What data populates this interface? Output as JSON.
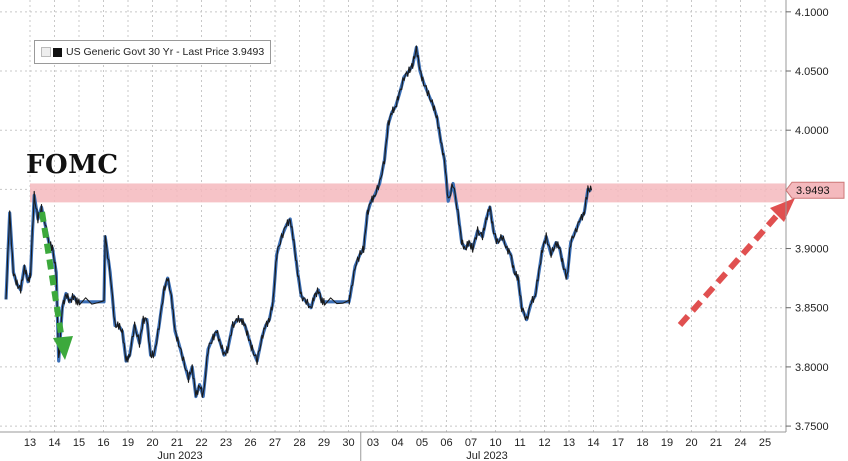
{
  "legend": {
    "text": "US Generic Govt 30 Yr - Last Price 3.9493",
    "series_color": "#1a1a1a"
  },
  "annotations": {
    "fomc_label": "FOMC",
    "band_color": "#f4b9bd",
    "down_arrow_color": "#3ca93c",
    "up_arrow_color": "#e05050"
  },
  "chart_data": {
    "type": "line",
    "title": "",
    "xlabel": "",
    "ylabel": "",
    "ylim": [
      3.745,
      4.11
    ],
    "y_ticks": [
      "4.1000",
      "4.0500",
      "4.0000",
      "3.9500",
      "3.9000",
      "3.8500",
      "3.8000",
      "3.7500"
    ],
    "y_tick_values": [
      4.1,
      4.05,
      4.0,
      3.95,
      3.9,
      3.85,
      3.8,
      3.75
    ],
    "x_tick_labels": [
      "13",
      "14",
      "15",
      "16",
      "19",
      "20",
      "21",
      "22",
      "23",
      "26",
      "27",
      "28",
      "29",
      "30",
      "03",
      "04",
      "05",
      "06",
      "07",
      "10",
      "11",
      "12",
      "13",
      "14",
      "17",
      "18",
      "19",
      "20",
      "21",
      "24",
      "25"
    ],
    "month_labels": [
      "Jun 2023",
      "Jul 2023"
    ],
    "last_price_label": "3.9493",
    "last_price": 3.9493,
    "fomc_band": [
      3.939,
      3.955
    ],
    "series": [
      {
        "name": "US Generic Govt 30 Yr - Last Price",
        "points": [
          [
            0.0,
            3.857
          ],
          [
            0.15,
            3.93
          ],
          [
            0.3,
            3.88
          ],
          [
            0.45,
            3.87
          ],
          [
            0.6,
            3.865
          ],
          [
            0.75,
            3.885
          ],
          [
            0.9,
            3.872
          ],
          [
            1.0,
            3.878
          ],
          [
            1.15,
            3.945
          ],
          [
            1.3,
            3.925
          ],
          [
            1.45,
            3.935
          ],
          [
            1.6,
            3.92
          ],
          [
            1.75,
            3.905
          ],
          [
            1.9,
            3.9
          ],
          [
            2.05,
            3.88
          ],
          [
            2.15,
            3.805
          ],
          [
            2.3,
            3.85
          ],
          [
            2.45,
            3.862
          ],
          [
            2.6,
            3.855
          ],
          [
            2.75,
            3.86
          ],
          [
            2.9,
            3.855
          ],
          [
            3.0,
            3.855
          ],
          [
            4.0,
            3.855
          ],
          [
            4.05,
            3.91
          ],
          [
            4.25,
            3.88
          ],
          [
            4.45,
            3.835
          ],
          [
            4.6,
            3.835
          ],
          [
            4.75,
            3.83
          ],
          [
            4.9,
            3.805
          ],
          [
            5.05,
            3.81
          ],
          [
            5.25,
            3.835
          ],
          [
            5.45,
            3.82
          ],
          [
            5.6,
            3.84
          ],
          [
            5.75,
            3.84
          ],
          [
            5.9,
            3.81
          ],
          [
            6.05,
            3.81
          ],
          [
            6.25,
            3.835
          ],
          [
            6.45,
            3.865
          ],
          [
            6.6,
            3.875
          ],
          [
            6.75,
            3.86
          ],
          [
            6.9,
            3.83
          ],
          [
            7.05,
            3.82
          ],
          [
            7.25,
            3.805
          ],
          [
            7.45,
            3.79
          ],
          [
            7.6,
            3.8
          ],
          [
            7.75,
            3.775
          ],
          [
            7.9,
            3.785
          ],
          [
            8.05,
            3.775
          ],
          [
            8.25,
            3.815
          ],
          [
            8.45,
            3.825
          ],
          [
            8.6,
            3.83
          ],
          [
            8.75,
            3.82
          ],
          [
            8.9,
            3.81
          ],
          [
            9.05,
            3.815
          ],
          [
            9.25,
            3.835
          ],
          [
            9.45,
            3.84
          ],
          [
            9.6,
            3.84
          ],
          [
            9.75,
            3.835
          ],
          [
            9.9,
            3.825
          ],
          [
            10.05,
            3.815
          ],
          [
            10.25,
            3.805
          ],
          [
            10.45,
            3.825
          ],
          [
            10.6,
            3.835
          ],
          [
            10.75,
            3.84
          ],
          [
            10.9,
            3.855
          ],
          [
            11.05,
            3.895
          ],
          [
            11.25,
            3.91
          ],
          [
            11.45,
            3.92
          ],
          [
            11.6,
            3.925
          ],
          [
            11.75,
            3.905
          ],
          [
            11.9,
            3.88
          ],
          [
            12.05,
            3.86
          ],
          [
            12.25,
            3.855
          ],
          [
            12.45,
            3.85
          ],
          [
            12.6,
            3.86
          ],
          [
            12.75,
            3.865
          ],
          [
            12.9,
            3.855
          ],
          [
            13.0,
            3.855
          ],
          [
            14.0,
            3.855
          ],
          [
            14.05,
            3.86
          ],
          [
            14.25,
            3.885
          ],
          [
            14.45,
            3.895
          ],
          [
            14.6,
            3.9
          ],
          [
            14.75,
            3.93
          ],
          [
            14.9,
            3.94
          ],
          [
            15.05,
            3.945
          ],
          [
            15.25,
            3.955
          ],
          [
            15.45,
            3.975
          ],
          [
            15.6,
            4.005
          ],
          [
            15.75,
            4.015
          ],
          [
            15.9,
            4.02
          ],
          [
            16.05,
            4.03
          ],
          [
            16.25,
            4.045
          ],
          [
            16.45,
            4.05
          ],
          [
            16.6,
            4.055
          ],
          [
            16.75,
            4.07
          ],
          [
            16.9,
            4.05
          ],
          [
            17.05,
            4.04
          ],
          [
            17.25,
            4.03
          ],
          [
            17.45,
            4.02
          ],
          [
            17.6,
            4.01
          ],
          [
            17.75,
            3.99
          ],
          [
            17.9,
            3.975
          ],
          [
            18.05,
            3.94
          ],
          [
            18.25,
            3.955
          ],
          [
            18.45,
            3.93
          ],
          [
            18.6,
            3.905
          ],
          [
            18.75,
            3.9
          ],
          [
            18.9,
            3.905
          ],
          [
            19.05,
            3.9
          ],
          [
            19.25,
            3.915
          ],
          [
            19.45,
            3.91
          ],
          [
            19.6,
            3.925
          ],
          [
            19.75,
            3.935
          ],
          [
            19.9,
            3.915
          ],
          [
            20.05,
            3.905
          ],
          [
            20.25,
            3.91
          ],
          [
            20.45,
            3.9
          ],
          [
            20.6,
            3.895
          ],
          [
            20.75,
            3.88
          ],
          [
            20.9,
            3.875
          ],
          [
            21.05,
            3.85
          ],
          [
            21.25,
            3.84
          ],
          [
            21.45,
            3.855
          ],
          [
            21.6,
            3.86
          ],
          [
            21.75,
            3.88
          ],
          [
            21.9,
            3.9
          ],
          [
            22.05,
            3.91
          ],
          [
            22.25,
            3.895
          ],
          [
            22.45,
            3.905
          ],
          [
            22.6,
            3.9
          ],
          [
            22.75,
            3.885
          ],
          [
            22.9,
            3.875
          ],
          [
            23.05,
            3.905
          ],
          [
            23.25,
            3.915
          ],
          [
            23.45,
            3.925
          ],
          [
            23.6,
            3.93
          ],
          [
            23.75,
            3.95
          ],
          [
            23.9,
            3.9493
          ]
        ]
      }
    ],
    "grid": true,
    "legend_position": "top-left"
  }
}
